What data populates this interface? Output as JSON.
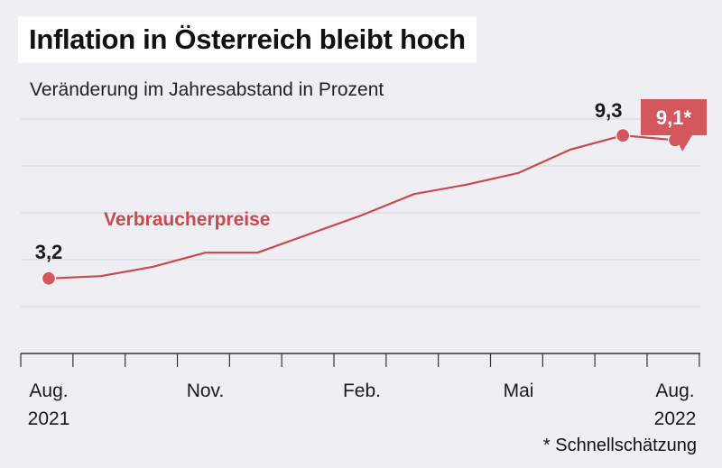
{
  "header": {
    "title": "Inflation in Österreich bleibt hoch",
    "subtitle": "Veränderung im Jahresabstand in Prozent"
  },
  "footnote": "* Schnellschätzung",
  "colors": {
    "line": "#c8494e",
    "callout": "#d3575c",
    "grid": "#d4d4dc",
    "axis": "#333333",
    "background": "#eeeef3"
  },
  "chart_data": {
    "type": "line",
    "x": [
      "2021-08",
      "2021-09",
      "2021-10",
      "2021-11",
      "2021-12",
      "2022-01",
      "2022-02",
      "2022-03",
      "2022-04",
      "2022-05",
      "2022-06",
      "2022-07",
      "2022-08"
    ],
    "series": [
      {
        "name": "Verbraucherpreise",
        "values": [
          3.2,
          3.3,
          3.7,
          4.3,
          4.3,
          5.1,
          5.9,
          6.8,
          7.2,
          7.7,
          8.7,
          9.3,
          9.1
        ]
      }
    ],
    "ticks": [
      {
        "x": "2021-08",
        "label": "Aug.",
        "sublabel": "2021"
      },
      {
        "x": "2021-11",
        "label": "Nov.",
        "sublabel": ""
      },
      {
        "x": "2022-02",
        "label": "Feb.",
        "sublabel": ""
      },
      {
        "x": "2022-05",
        "label": "Mai",
        "sublabel": ""
      },
      {
        "x": "2022-08",
        "label": "Aug.",
        "sublabel": "2022"
      }
    ],
    "markers": [
      {
        "x": "2021-08",
        "label": "3,2",
        "style": "plain"
      },
      {
        "x": "2022-07",
        "label": "9,3",
        "style": "plain"
      },
      {
        "x": "2022-08",
        "label": "9,1*",
        "style": "callout"
      }
    ],
    "ylim": [
      0,
      10
    ],
    "grid": true
  }
}
